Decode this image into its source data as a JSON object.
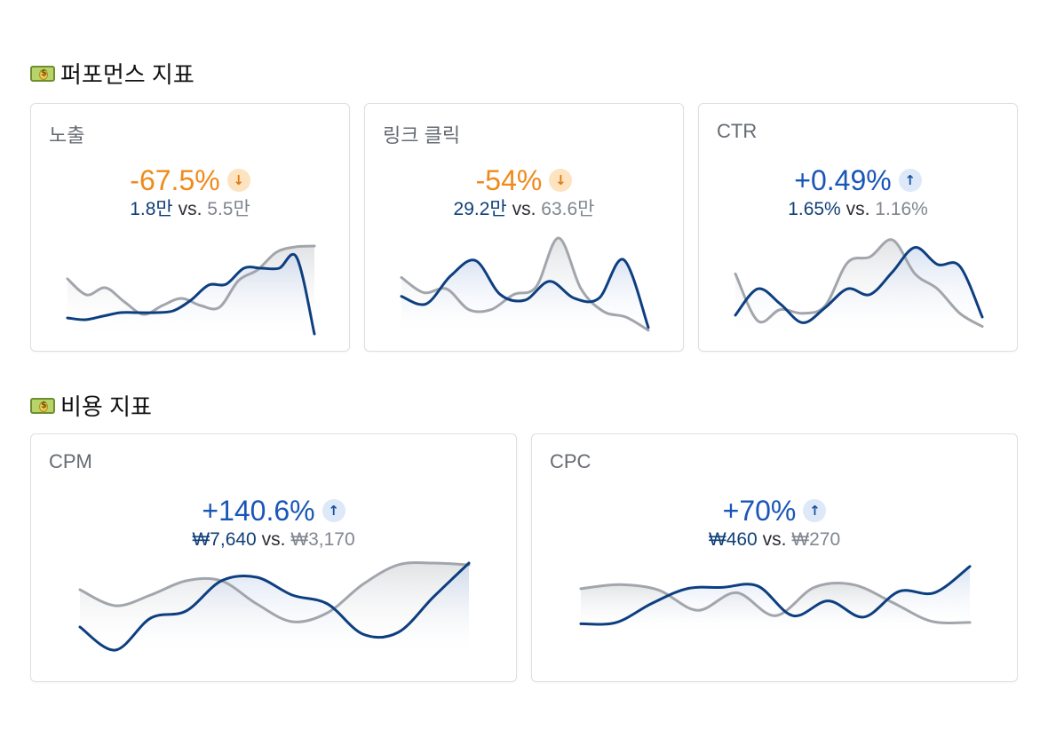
{
  "sections": {
    "performance": {
      "emoji": "💵",
      "title": "퍼포먼스 지표"
    },
    "cost": {
      "emoji": "💵",
      "title": "비용 지표"
    }
  },
  "cards": [
    {
      "title": "노출",
      "change": "-67.5%",
      "direction": "down",
      "current": "1.8만",
      "vs": "vs.",
      "previous": "5.5만",
      "current_series": [
        0.18,
        0.16,
        0.2,
        0.24,
        0.24,
        0.24,
        0.26,
        0.38,
        0.55,
        0.56,
        0.74,
        0.74,
        0.74,
        0.86,
        0.0
      ],
      "previous_series": [
        0.62,
        0.44,
        0.52,
        0.36,
        0.22,
        0.32,
        0.4,
        0.32,
        0.3,
        0.6,
        0.72,
        0.92,
        0.98,
        0.99
      ]
    },
    {
      "title": "링크 클릭",
      "change": "-54%",
      "direction": "down",
      "current": "29.2만",
      "vs": "vs.",
      "previous": "63.6만",
      "current_series": [
        0.38,
        0.3,
        0.6,
        0.76,
        0.4,
        0.34,
        0.54,
        0.36,
        0.36,
        0.77,
        0.05
      ],
      "previous_series": [
        0.58,
        0.42,
        0.46,
        0.24,
        0.24,
        0.4,
        0.48,
        1.0,
        0.46,
        0.22,
        0.16,
        0.02
      ]
    },
    {
      "title": "CTR",
      "change": "+0.49%",
      "direction": "up",
      "current": "1.65%",
      "vs": "vs.",
      "previous": "1.16%",
      "current_series": [
        0.18,
        0.46,
        0.3,
        0.1,
        0.26,
        0.46,
        0.4,
        0.64,
        0.9,
        0.72,
        0.7,
        0.16
      ],
      "previous_series": [
        0.62,
        0.12,
        0.24,
        0.2,
        0.28,
        0.74,
        0.8,
        0.98,
        0.62,
        0.46,
        0.2,
        0.06
      ]
    },
    {
      "title": "CPM",
      "change": "+140.6%",
      "direction": "up",
      "current": "₩7,640",
      "vs": "vs.",
      "previous": "₩3,170",
      "current_series": [
        0.28,
        0.02,
        0.38,
        0.46,
        0.8,
        0.84,
        0.64,
        0.54,
        0.2,
        0.22,
        0.62,
        1.0
      ],
      "previous_series": [
        0.7,
        0.52,
        0.64,
        0.8,
        0.8,
        0.54,
        0.34,
        0.44,
        0.76,
        0.98,
        1.0,
        0.98
      ]
    },
    {
      "title": "CPC",
      "change": "+70%",
      "direction": "up",
      "current": "₩460",
      "vs": "vs.",
      "previous": "₩270",
      "current_series": [
        0.1,
        0.12,
        0.4,
        0.62,
        0.64,
        0.66,
        0.22,
        0.44,
        0.2,
        0.58,
        0.56,
        0.95
      ],
      "previous_series": [
        0.62,
        0.68,
        0.6,
        0.3,
        0.56,
        0.22,
        0.64,
        0.68,
        0.42,
        0.14,
        0.12
      ]
    }
  ],
  "colors": {
    "current_line": "#0d3f80",
    "previous_line": "#a2a6ac",
    "down": "#ef8a1a",
    "up": "#1a56b8"
  },
  "icons": {
    "down_arrow": "↓",
    "up_arrow": "↑",
    "section_icon": "money-icon"
  }
}
